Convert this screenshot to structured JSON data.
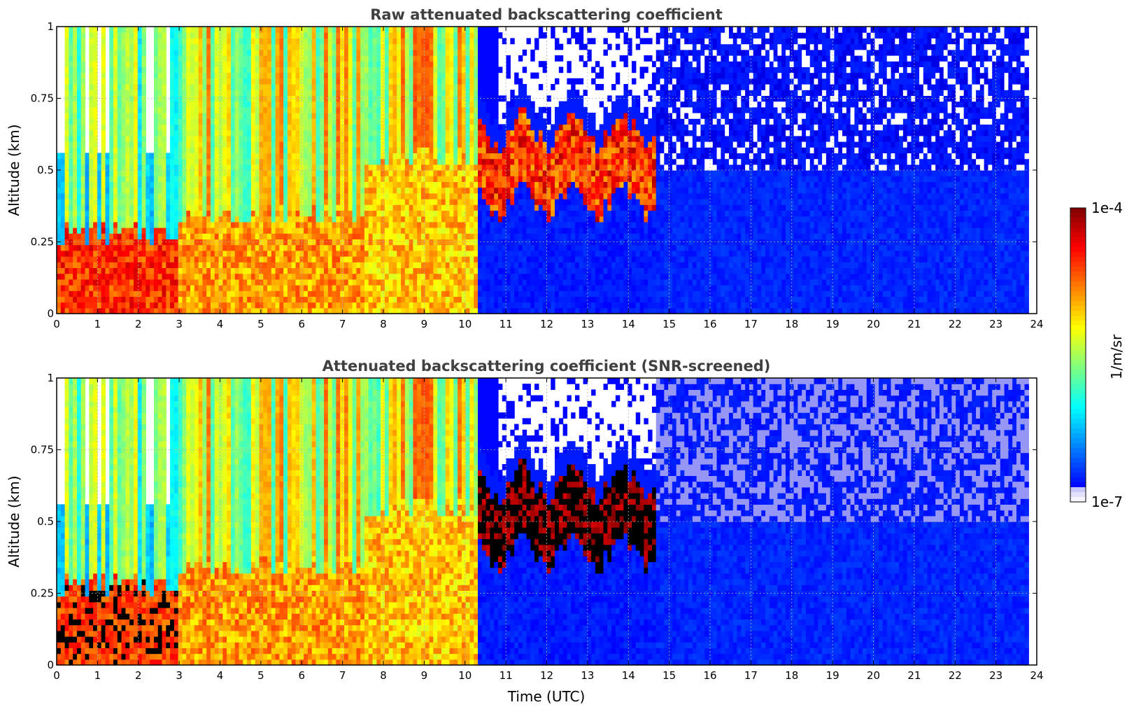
{
  "chart_data": [
    {
      "type": "heatmap",
      "title": "Raw attenuated backscattering coefficient",
      "xlabel": "",
      "ylabel": "Altitude (km)",
      "xlim": [
        0,
        24
      ],
      "ylim": [
        0,
        1
      ],
      "x_ticks": [
        "0",
        "1",
        "2",
        "3",
        "4",
        "5",
        "6",
        "7",
        "8",
        "9",
        "10",
        "11",
        "12",
        "13",
        "14",
        "15",
        "16",
        "17",
        "18",
        "19",
        "20",
        "21",
        "22",
        "23",
        "24"
      ],
      "y_ticks": [
        "0",
        "0.25",
        "0.5",
        "0.75",
        "1"
      ],
      "y_tick_values": [
        0,
        0.25,
        0.5,
        0.75,
        1
      ],
      "grid": true,
      "screened": false,
      "regions": [
        {
          "t": [
            0,
            3
          ],
          "aerosol_top_km": 0.28,
          "aerosol_level": 0.83,
          "upper_level": 0.45
        },
        {
          "t": [
            3,
            7.5
          ],
          "aerosol_top_km": 0.35,
          "aerosol_level": 0.72,
          "upper_level": 0.6
        },
        {
          "t": [
            7.5,
            10.3
          ],
          "aerosol_top_km": 0.55,
          "aerosol_level": 0.68,
          "upper_level": 0.62
        },
        {
          "t": [
            10.3,
            14.7
          ],
          "cloud_base_km": 0.42,
          "cloud_level": 0.95,
          "below_level": 0.15
        },
        {
          "t": [
            14.7,
            23.8
          ],
          "background_level": 0.16
        }
      ]
    },
    {
      "type": "heatmap",
      "title": "Attenuated backscattering coefficient (SNR-screened)",
      "xlabel": "Time (UTC)",
      "ylabel": "Altitude (km)",
      "xlim": [
        0,
        24
      ],
      "ylim": [
        0,
        1
      ],
      "x_ticks": [
        "0",
        "1",
        "2",
        "3",
        "4",
        "5",
        "6",
        "7",
        "8",
        "9",
        "10",
        "11",
        "12",
        "13",
        "14",
        "15",
        "16",
        "17",
        "18",
        "19",
        "20",
        "21",
        "22",
        "23",
        "24"
      ],
      "y_ticks": [
        "0",
        "0.25",
        "0.5",
        "0.75",
        "1"
      ],
      "y_tick_values": [
        0,
        0.25,
        0.5,
        0.75,
        1
      ],
      "grid": true,
      "screened": true,
      "regions": [
        {
          "t": [
            0,
            3
          ],
          "aerosol_top_km": 0.28,
          "aerosol_level": 0.83,
          "upper_level": 0.45
        },
        {
          "t": [
            3,
            7.5
          ],
          "aerosol_top_km": 0.35,
          "aerosol_level": 0.72,
          "upper_level": 0.6
        },
        {
          "t": [
            7.5,
            10.3
          ],
          "aerosol_top_km": 0.55,
          "aerosol_level": 0.68,
          "upper_level": 0.62
        },
        {
          "t": [
            10.3,
            14.7
          ],
          "cloud_base_km": 0.42,
          "cloud_level": 1.0,
          "below_level": 0.15
        },
        {
          "t": [
            14.7,
            23.8
          ],
          "background_level": 0.16
        }
      ]
    }
  ],
  "colorbar": {
    "label": "1/m/sr",
    "max_label": "1e-4",
    "min_label": "1e-7",
    "colormap": "jet",
    "scale": "log",
    "range": [
      1e-07,
      0.0001
    ]
  }
}
